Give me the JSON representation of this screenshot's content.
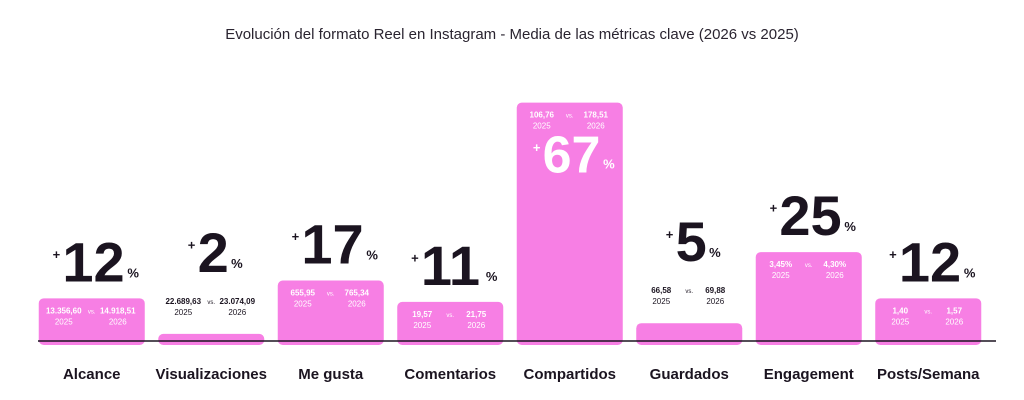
{
  "colors": {
    "bar": "#f77fe4",
    "text_dark": "#1b1420",
    "text_on_bar": "#ffffff",
    "baseline": "#1b1420"
  },
  "chart_data": {
    "type": "bar",
    "title": "Evolución del formato Reel en Instagram - Media de las métricas clave (2026 vs 2025)",
    "categories": [
      "Alcance",
      "Visualizaciones",
      "Me gusta",
      "Comentarios",
      "Compartidos",
      "Guardados",
      "Engagement",
      "Posts/Semana"
    ],
    "series": [
      {
        "values": [
          12,
          2,
          17,
          11,
          67,
          5,
          25,
          12
        ]
      }
    ],
    "change_labels": [
      {
        "sign": "+",
        "number": "12",
        "unit": "%"
      },
      {
        "sign": "+",
        "number": "2",
        "unit": "%"
      },
      {
        "sign": "+",
        "number": "17",
        "unit": "%"
      },
      {
        "sign": "+",
        "number": "11",
        "unit": "%"
      },
      {
        "sign": "+",
        "number": "67",
        "unit": "%"
      },
      {
        "sign": "+",
        "number": "5",
        "unit": "%"
      },
      {
        "sign": "+",
        "number": "25",
        "unit": "%"
      },
      {
        "sign": "+",
        "number": "12",
        "unit": "%"
      }
    ],
    "comparisons": [
      {
        "v2025": "13.356,60",
        "v2026": "14.918,51"
      },
      {
        "v2025": "22.689,63",
        "v2026": "23.074,09"
      },
      {
        "v2025": "655,95",
        "v2026": "765,34"
      },
      {
        "v2025": "19,57",
        "v2026": "21,75"
      },
      {
        "v2025": "106,76",
        "v2026": "178,51"
      },
      {
        "v2025": "66,58",
        "v2026": "69,88"
      },
      {
        "v2025": "3,45%",
        "v2026": "4,30%"
      },
      {
        "v2025": "1,40",
        "v2026": "1,57"
      }
    ],
    "year_labels": {
      "a": "2025",
      "b": "2026"
    },
    "vs_label": "vs.",
    "ylim": [
      0,
      70
    ],
    "grid": false,
    "legend": "none"
  }
}
